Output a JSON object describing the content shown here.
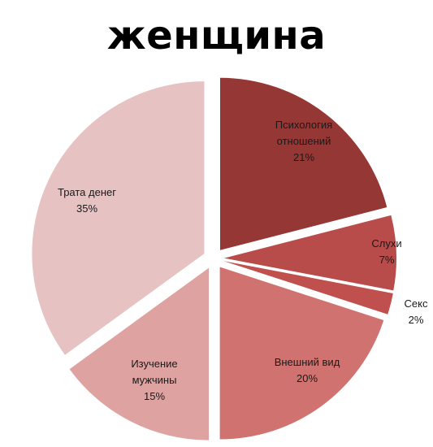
{
  "chart_data": {
    "type": "pie",
    "title": "женщина",
    "exploded": true,
    "slices": [
      {
        "label_lines": [
          "Психология",
          "отношений"
        ],
        "value": 21,
        "value_label": "21%",
        "color": "#953735"
      },
      {
        "label_lines": [
          "Слухи"
        ],
        "value": 7,
        "value_label": "7%",
        "color": "#b84c4a"
      },
      {
        "label_lines": [
          "Секс"
        ],
        "value": 2,
        "value_label": "2%",
        "color": "#c0504d"
      },
      {
        "label_lines": [
          "Внешний вид"
        ],
        "value": 20,
        "value_label": "20%",
        "color": "#d07370"
      },
      {
        "label_lines": [
          "Изучение",
          "мужчины"
        ],
        "value": 15,
        "value_label": "15%",
        "color": "#dea3a1"
      },
      {
        "label_lines": [
          "Трата денег"
        ],
        "value": 35,
        "value_label": "35%",
        "color": "#e6c3c2"
      }
    ]
  }
}
